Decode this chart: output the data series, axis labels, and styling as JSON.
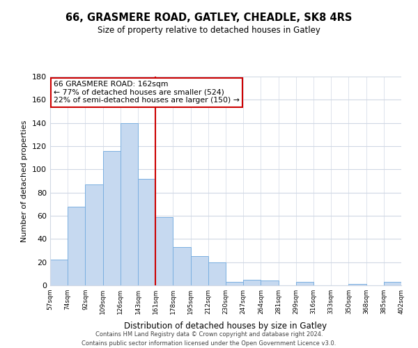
{
  "title": "66, GRASMERE ROAD, GATLEY, CHEADLE, SK8 4RS",
  "subtitle": "Size of property relative to detached houses in Gatley",
  "xlabel": "Distribution of detached houses by size in Gatley",
  "ylabel": "Number of detached properties",
  "footer_line1": "Contains HM Land Registry data © Crown copyright and database right 2024.",
  "footer_line2": "Contains public sector information licensed under the Open Government Licence v3.0.",
  "bar_labels": [
    "57sqm",
    "74sqm",
    "92sqm",
    "109sqm",
    "126sqm",
    "143sqm",
    "161sqm",
    "178sqm",
    "195sqm",
    "212sqm",
    "230sqm",
    "247sqm",
    "264sqm",
    "281sqm",
    "299sqm",
    "316sqm",
    "333sqm",
    "350sqm",
    "368sqm",
    "385sqm",
    "402sqm"
  ],
  "bar_heights": [
    22,
    68,
    87,
    116,
    140,
    92,
    59,
    33,
    25,
    20,
    3,
    5,
    4,
    0,
    3,
    0,
    0,
    1,
    0,
    3
  ],
  "bar_color": "#c6d9f0",
  "bar_edge_color": "#7aafe0",
  "reference_line_color": "#cc0000",
  "annotation_title": "66 GRASMERE ROAD: 162sqm",
  "annotation_line1": "← 77% of detached houses are smaller (524)",
  "annotation_line2": "22% of semi-detached houses are larger (150) →",
  "annotation_box_color": "#ffffff",
  "annotation_box_edge_color": "#cc0000",
  "ylim": [
    0,
    180
  ],
  "background_color": "#ffffff",
  "grid_color": "#d0d8e4"
}
